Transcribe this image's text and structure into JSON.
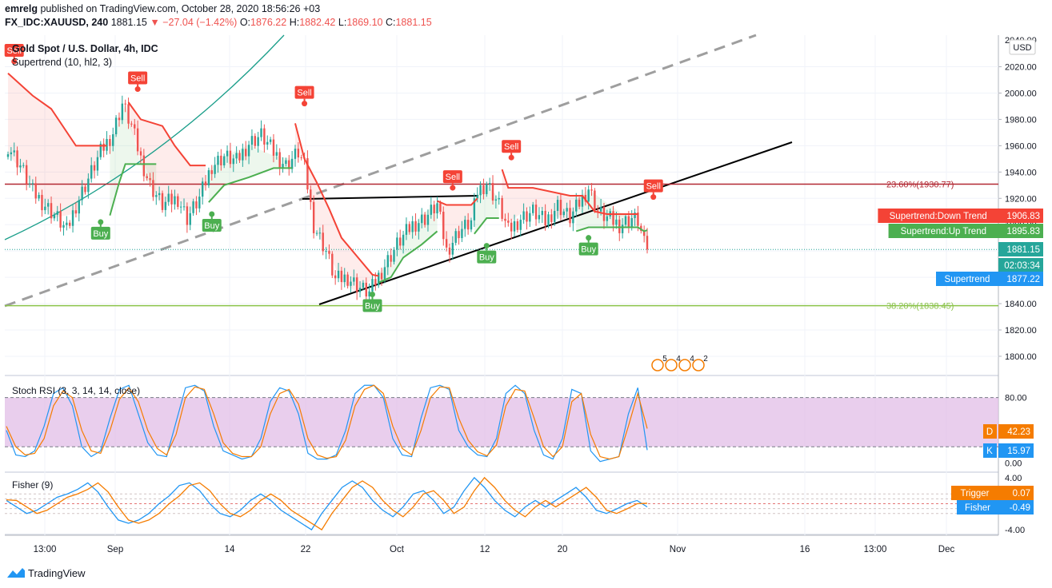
{
  "header": {
    "user": "emrelg",
    "published_text": "published on TradingView.com, October 28, 2020 18:56:26 +03",
    "symbol": "FX_IDC:XAUUSD, 240",
    "last": "1881.15",
    "change": "−27.04 (−1.42%)",
    "o_label": "O:",
    "o": "1876.22",
    "h_label": "H:",
    "h": "1882.42",
    "l_label": "L:",
    "l": "1869.10",
    "c_label": "C:",
    "c": "1881.15"
  },
  "pane_title": "Gold Spot / U.S. Dollar, 4h, IDC",
  "supertrend_legend": "Supertrend (10, hl2, 3)",
  "currency": "USD",
  "colors": {
    "up": "#26a69a",
    "down": "#ef5350",
    "st_up": "#4caf50",
    "st_down": "#f44336",
    "fib236": "#b22833",
    "fib382": "#8bc34a",
    "stoch_band": "#e1bee7",
    "orange": "#f57c00",
    "blue": "#2196f3",
    "black": "#000000",
    "gray": "#9e9e9e",
    "teal": "#1a9e8a"
  },
  "chart_data": [
    {
      "type": "candlestick",
      "title": "Gold Spot / U.S. Dollar, 4h, IDC",
      "ylim": [
        1786,
        2044
      ],
      "y_ticks": [
        1800,
        1820,
        1840,
        1860,
        1880,
        1900,
        1920,
        1940,
        1960,
        1980,
        2000,
        2020
      ],
      "y_tick_labels": [
        "1800.00",
        "1820.00",
        "1840.00",
        "1860.00",
        "1880.00",
        "1900.00",
        "1920.00",
        "1940.00",
        "1960.00",
        "1980.00",
        "2000.00",
        "2020.00"
      ],
      "top_partial_label": "2040.00",
      "x_tick_labels": [
        "13:00",
        "Sep",
        "14",
        "22",
        "Oct",
        "12",
        "20",
        "Nov",
        "16",
        "13:00",
        "Dec"
      ],
      "price_path": [
        [
          0,
          1960
        ],
        [
          4,
          1945
        ],
        [
          8,
          1925
        ],
        [
          12,
          1915
        ],
        [
          16,
          1905
        ],
        [
          19,
          1895
        ],
        [
          22,
          1915
        ],
        [
          26,
          1935
        ],
        [
          30,
          1955
        ],
        [
          34,
          1970
        ],
        [
          37,
          1992
        ],
        [
          40,
          1975
        ],
        [
          43,
          1950
        ],
        [
          46,
          1930
        ],
        [
          50,
          1915
        ],
        [
          55,
          1920
        ],
        [
          58,
          1905
        ],
        [
          62,
          1920
        ],
        [
          66,
          1945
        ],
        [
          70,
          1952
        ],
        [
          74,
          1948
        ],
        [
          78,
          1962
        ],
        [
          82,
          1968
        ],
        [
          86,
          1955
        ],
        [
          90,
          1945
        ],
        [
          94,
          1955
        ],
        [
          96,
          1944
        ],
        [
          99,
          1900
        ],
        [
          103,
          1880
        ],
        [
          106,
          1858
        ],
        [
          110,
          1860
        ],
        [
          114,
          1852
        ],
        [
          117,
          1848
        ],
        [
          121,
          1865
        ],
        [
          126,
          1885
        ],
        [
          131,
          1900
        ],
        [
          135,
          1905
        ],
        [
          139,
          1915
        ],
        [
          142,
          1880
        ],
        [
          146,
          1895
        ],
        [
          150,
          1902
        ],
        [
          152,
          1925
        ],
        [
          155,
          1932
        ],
        [
          159,
          1915
        ],
        [
          162,
          1895
        ],
        [
          166,
          1905
        ],
        [
          170,
          1910
        ],
        [
          174,
          1902
        ],
        [
          178,
          1915
        ],
        [
          182,
          1905
        ],
        [
          186,
          1920
        ],
        [
          188,
          1928
        ],
        [
          191,
          1910
        ],
        [
          194,
          1905
        ],
        [
          198,
          1900
        ],
        [
          202,
          1905
        ],
        [
          204,
          1903
        ],
        [
          206,
          1885
        ],
        [
          207,
          1881.15
        ]
      ],
      "supertrend": [
        {
          "dir": "down",
          "pts": [
            [
              0,
              2015
            ],
            [
              8,
              1998
            ],
            [
              14,
              1988
            ],
            [
              22,
              1960
            ],
            [
              28,
              1960
            ],
            [
              32,
              1960
            ]
          ]
        },
        {
          "dir": "up",
          "pts": [
            [
              33,
              1907
            ],
            [
              36,
              1932
            ],
            [
              38,
              1946
            ],
            [
              44,
              1946
            ],
            [
              48,
              1946
            ]
          ]
        },
        {
          "dir": "down",
          "pts": [
            [
              39,
              1993
            ],
            [
              43,
              1980
            ],
            [
              50,
              1975
            ],
            [
              54,
              1960
            ],
            [
              59,
              1945
            ],
            [
              64,
              1945
            ]
          ]
        },
        {
          "dir": "up",
          "pts": [
            [
              65,
              1917
            ],
            [
              70,
              1930
            ],
            [
              78,
              1936
            ],
            [
              86,
              1943
            ],
            [
              92,
              1943
            ]
          ]
        },
        {
          "dir": "down",
          "pts": [
            [
              93,
              1977
            ],
            [
              96,
              1950
            ],
            [
              100,
              1932
            ],
            [
              104,
              1912
            ],
            [
              108,
              1890
            ],
            [
              113,
              1876
            ],
            [
              118,
              1862
            ],
            [
              120,
              1861
            ]
          ]
        },
        {
          "dir": "up",
          "pts": [
            [
              120,
              1856
            ],
            [
              124,
              1860
            ],
            [
              128,
              1875
            ],
            [
              134,
              1885
            ],
            [
              139,
              1895
            ]
          ]
        },
        {
          "dir": "down",
          "pts": [
            [
              139,
              1918
            ],
            [
              142,
              1915
            ],
            [
              146,
              1915
            ],
            [
              150,
              1915
            ],
            [
              152,
              1920
            ]
          ]
        },
        {
          "dir": "up",
          "pts": [
            [
              151,
              1893
            ],
            [
              155,
              1905
            ],
            [
              159,
              1905
            ]
          ]
        },
        {
          "dir": "down",
          "pts": [
            [
              160,
              1942
            ],
            [
              162,
              1928
            ],
            [
              170,
              1928
            ],
            [
              182,
              1922
            ],
            [
              186,
              1922
            ],
            [
              190,
              1910
            ],
            [
              194,
              1908
            ],
            [
              200,
              1908
            ],
            [
              204,
              1908
            ]
          ]
        },
        {
          "dir": "up",
          "pts": [
            [
              184,
              1895
            ],
            [
              188,
              1898
            ],
            [
              200,
              1898
            ],
            [
              204,
              1898
            ],
            [
              206,
              1895
            ],
            [
              207,
              1895.83
            ]
          ]
        }
      ],
      "signals": [
        {
          "label": "Sell",
          "idx": 2,
          "v": 2024
        },
        {
          "label": "Buy",
          "idx": 30,
          "v": 1902
        },
        {
          "label": "Sell",
          "idx": 42,
          "v": 2003
        },
        {
          "label": "Buy",
          "idx": 66,
          "v": 1908
        },
        {
          "label": "Sell",
          "idx": 96,
          "v": 1992
        },
        {
          "label": "Buy",
          "idx": 118,
          "v": 1847
        },
        {
          "label": "Sell",
          "idx": 144,
          "v": 1928
        },
        {
          "label": "Buy",
          "idx": 155,
          "v": 1884
        },
        {
          "label": "Sell",
          "idx": 163,
          "v": 1951
        },
        {
          "label": "Buy",
          "idx": 188,
          "v": 1890
        },
        {
          "label": "Sell",
          "idx": 209,
          "v": 1921
        }
      ],
      "fib_levels": [
        {
          "label": "23.60%(1930.77)",
          "v": 1930.77
        },
        {
          "label": "38.20%(1838.45)",
          "v": 1838.45
        }
      ],
      "labels_right": {
        "st_down_label": "Supertrend:Down Trend",
        "st_down_value": "1906.83",
        "st_up_label": "Supertrend:Up Trend",
        "st_up_value": "1895.83",
        "last_price": "1881.15",
        "countdown": "02:03:34",
        "st_label": "Supertrend",
        "st_value": "1877.22"
      },
      "events": [
        "5",
        "4",
        "4",
        "2"
      ]
    },
    {
      "type": "line",
      "title": "Stoch RSI (3, 3, 14, 14, close)",
      "ylim": [
        -10,
        105
      ],
      "y_tick_labels": [
        "80.00",
        "0.00"
      ],
      "bands": [
        20,
        80
      ],
      "series": [
        {
          "name": "K",
          "values": [
            40,
            10,
            8,
            15,
            45,
            85,
            92,
            70,
            20,
            8,
            15,
            55,
            90,
            95,
            60,
            25,
            10,
            8,
            50,
            92,
            95,
            88,
            45,
            15,
            10,
            5,
            8,
            30,
            75,
            92,
            88,
            60,
            12,
            5,
            5,
            10,
            40,
            85,
            95,
            95,
            80,
            30,
            10,
            8,
            55,
            92,
            95,
            90,
            40,
            20,
            10,
            8,
            30,
            85,
            95,
            85,
            40,
            10,
            5,
            30,
            90,
            85,
            15,
            2,
            5,
            8,
            60,
            92,
            15.97
          ]
        },
        {
          "name": "D",
          "values": [
            45,
            20,
            10,
            12,
            30,
            70,
            88,
            80,
            40,
            15,
            12,
            40,
            78,
            92,
            75,
            40,
            18,
            10,
            35,
            80,
            93,
            90,
            60,
            25,
            12,
            8,
            8,
            20,
            60,
            85,
            90,
            72,
            30,
            10,
            6,
            8,
            28,
            70,
            90,
            95,
            85,
            45,
            18,
            10,
            40,
            80,
            93,
            92,
            55,
            28,
            14,
            9,
            22,
            70,
            90,
            88,
            55,
            20,
            8,
            20,
            75,
            85,
            35,
            8,
            5,
            8,
            45,
            85,
            42.23
          ]
        }
      ],
      "value_labels": {
        "d_tag": "D",
        "d_value": "42.23",
        "k_tag": "K",
        "k_value": "15.97"
      }
    },
    {
      "type": "line",
      "title": "Fisher (9)",
      "ylim": [
        -4.6,
        4.6
      ],
      "y_tick_labels": [
        "4.00",
        "-4.00"
      ],
      "series": [
        {
          "name": "Fisher",
          "values": [
            0.5,
            -0.5,
            -1.5,
            -1.0,
            0.0,
            1.0,
            1.5,
            2.2,
            3.2,
            1.8,
            -0.5,
            -2.5,
            -3.0,
            -2.5,
            -1.5,
            0.0,
            1.2,
            2.8,
            3.2,
            2.0,
            0.0,
            -1.5,
            -2.0,
            -1.0,
            0.5,
            1.5,
            0.5,
            -1.0,
            -2.0,
            -3.0,
            -4.0,
            -1.5,
            0.5,
            2.5,
            3.5,
            2.5,
            0.5,
            -1.0,
            -2.0,
            -0.5,
            1.5,
            2.0,
            0.5,
            -1.5,
            -0.5,
            2.0,
            4.0,
            2.5,
            0.5,
            -1.0,
            -2.0,
            -0.5,
            0.5,
            -0.5,
            0.5,
            1.5,
            2.5,
            1.0,
            -1.0,
            -1.5,
            -0.8,
            0.0,
            0.5,
            -0.49
          ]
        },
        {
          "name": "Trigger",
          "values": [
            0.6,
            0.5,
            -0.5,
            -1.5,
            -1.0,
            0.0,
            1.0,
            1.5,
            2.2,
            3.2,
            1.8,
            -0.5,
            -2.5,
            -3.0,
            -2.5,
            -1.5,
            0.0,
            1.2,
            2.8,
            3.2,
            2.0,
            0.0,
            -1.5,
            -2.0,
            -1.0,
            0.5,
            1.5,
            0.5,
            -1.0,
            -2.0,
            -3.0,
            -4.0,
            -1.5,
            0.5,
            2.5,
            3.5,
            2.5,
            0.5,
            -1.0,
            -2.0,
            -0.5,
            1.5,
            2.0,
            0.5,
            -1.5,
            -0.5,
            2.0,
            4.0,
            2.5,
            0.5,
            -1.0,
            -2.0,
            -0.5,
            0.5,
            -0.5,
            0.5,
            1.5,
            2.5,
            1.0,
            -1.0,
            -1.5,
            -0.8,
            0.0,
            0.07
          ]
        }
      ],
      "value_labels": {
        "trigger_label": "Trigger",
        "trigger_value": "0.07",
        "fisher_label": "Fisher",
        "fisher_value": "-0.49"
      }
    }
  ],
  "footer": {
    "brand": "TradingView"
  }
}
